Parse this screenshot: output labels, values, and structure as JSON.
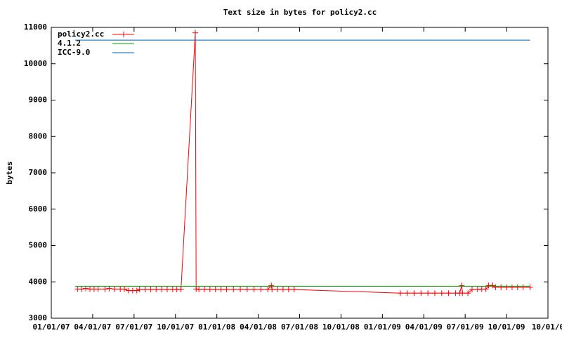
{
  "chart_data": {
    "type": "line",
    "title": "Text size in bytes for policy2.cc",
    "ylabel": "bytes",
    "xlim": [
      0,
      36
    ],
    "ylim": [
      3000,
      11000
    ],
    "yticks": [
      3000,
      4000,
      5000,
      6000,
      7000,
      8000,
      9000,
      10000,
      11000
    ],
    "xticks": [
      {
        "value": 0,
        "label": "01/01/07"
      },
      {
        "value": 3,
        "label": "04/01/07"
      },
      {
        "value": 6,
        "label": "07/01/07"
      },
      {
        "value": 9,
        "label": "10/01/07"
      },
      {
        "value": 12,
        "label": "01/01/08"
      },
      {
        "value": 15,
        "label": "04/01/08"
      },
      {
        "value": 18,
        "label": "07/01/08"
      },
      {
        "value": 21,
        "label": "10/01/08"
      },
      {
        "value": 24,
        "label": "01/01/09"
      },
      {
        "value": 27,
        "label": "04/01/09"
      },
      {
        "value": 30,
        "label": "07/01/09"
      },
      {
        "value": 33,
        "label": "10/01/09"
      },
      {
        "value": 36,
        "label": "10/01/0"
      }
    ],
    "legend": "top-left",
    "series": [
      {
        "name": "policy2.cc",
        "color": "#ff0000",
        "marker": "+",
        "x": [
          1.9,
          2.2,
          2.5,
          2.8,
          3.1,
          3.4,
          3.9,
          4.2,
          4.6,
          5.0,
          5.3,
          5.6,
          5.9,
          6.2,
          6.4,
          6.8,
          7.2,
          7.6,
          8.0,
          8.4,
          8.8,
          9.1,
          9.4,
          10.44,
          10.5,
          10.7,
          11.1,
          11.5,
          11.9,
          12.3,
          12.7,
          13.2,
          13.7,
          14.2,
          14.7,
          15.2,
          15.7,
          15.95,
          16.0,
          16.4,
          16.8,
          17.2,
          17.6,
          25.3,
          25.8,
          26.3,
          26.8,
          27.3,
          27.8,
          28.3,
          28.8,
          29.3,
          29.6,
          29.75,
          29.8,
          30.2,
          30.5,
          30.9,
          31.2,
          31.5,
          31.7,
          32.0,
          32.2,
          32.6,
          33.0,
          33.4,
          33.8,
          34.2,
          34.7
        ],
        "values": [
          3800,
          3800,
          3820,
          3800,
          3800,
          3800,
          3800,
          3820,
          3800,
          3800,
          3800,
          3760,
          3760,
          3760,
          3790,
          3790,
          3790,
          3790,
          3790,
          3790,
          3790,
          3790,
          3790,
          10850,
          3800,
          3790,
          3790,
          3790,
          3790,
          3790,
          3790,
          3790,
          3790,
          3790,
          3790,
          3790,
          3790,
          3900,
          3790,
          3790,
          3790,
          3790,
          3790,
          3690,
          3690,
          3690,
          3690,
          3690,
          3690,
          3690,
          3690,
          3690,
          3690,
          3900,
          3690,
          3690,
          3790,
          3790,
          3800,
          3800,
          3900,
          3900,
          3850,
          3850,
          3850,
          3850,
          3850,
          3850,
          3850
        ]
      },
      {
        "name": "4.1.2",
        "color": "#00a000",
        "x": [
          1.73,
          34.7
        ],
        "values": [
          3880,
          3880
        ]
      },
      {
        "name": "ICC-9.0",
        "color": "#0060ad",
        "x": [
          1.73,
          34.7
        ],
        "values": [
          10650,
          10650
        ]
      }
    ]
  }
}
